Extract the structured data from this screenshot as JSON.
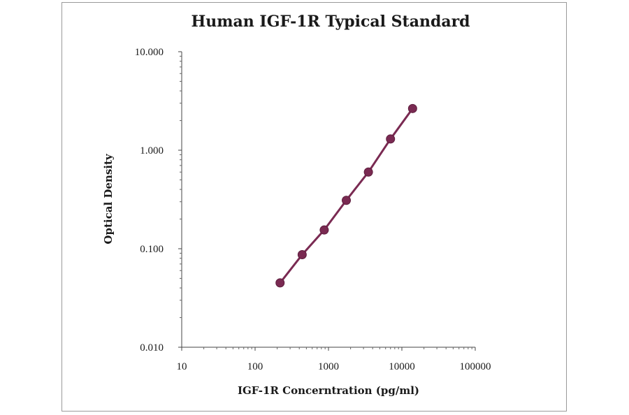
{
  "chart_data": {
    "type": "line",
    "title": "Human IGF-1R Typical Standard",
    "xlabel": "IGF-1R  Concerntration (pg/ml)",
    "ylabel": "Optical Density",
    "x_scale": "log",
    "y_scale": "log",
    "xlim": [
      10,
      100000
    ],
    "ylim": [
      0.01,
      10
    ],
    "x_ticks": [
      "10",
      "100",
      "1000",
      "10000",
      "100000"
    ],
    "y_ticks": [
      "0.010",
      "0.100",
      "1.000",
      "10.000"
    ],
    "grid": false,
    "legend": "none",
    "series": [
      {
        "color": "#7a2a52",
        "marker": "circle",
        "x": [
          219,
          438,
          875,
          1750,
          3500,
          7000,
          14000
        ],
        "y": [
          0.045,
          0.087,
          0.155,
          0.31,
          0.6,
          1.3,
          2.65
        ]
      }
    ]
  }
}
